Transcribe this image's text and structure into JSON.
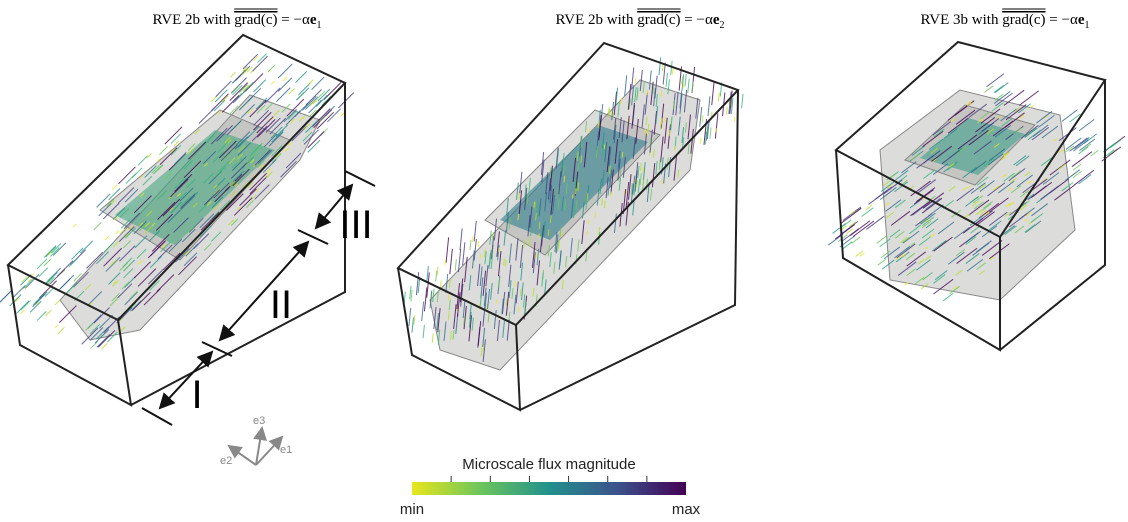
{
  "panels": [
    {
      "prefix": "RVE 2b with",
      "overlined": "grad(c)",
      "equation": "= −α",
      "vector": "e",
      "subscript": "1"
    },
    {
      "prefix": "RVE 2b with",
      "overlined": "grad(c)",
      "equation": "= −α",
      "vector": "e",
      "subscript": "2"
    },
    {
      "prefix": "RVE 3b with",
      "overlined": "grad(c)",
      "equation": "= −α",
      "vector": "e",
      "subscript": "1"
    }
  ],
  "regions": [
    "I",
    "II",
    "III"
  ],
  "axes": {
    "e1": "e1",
    "e2": "e2",
    "e3": "e3"
  },
  "colorbar": {
    "label": "Microscale flux magnitude",
    "min": "min",
    "max": "max"
  }
}
